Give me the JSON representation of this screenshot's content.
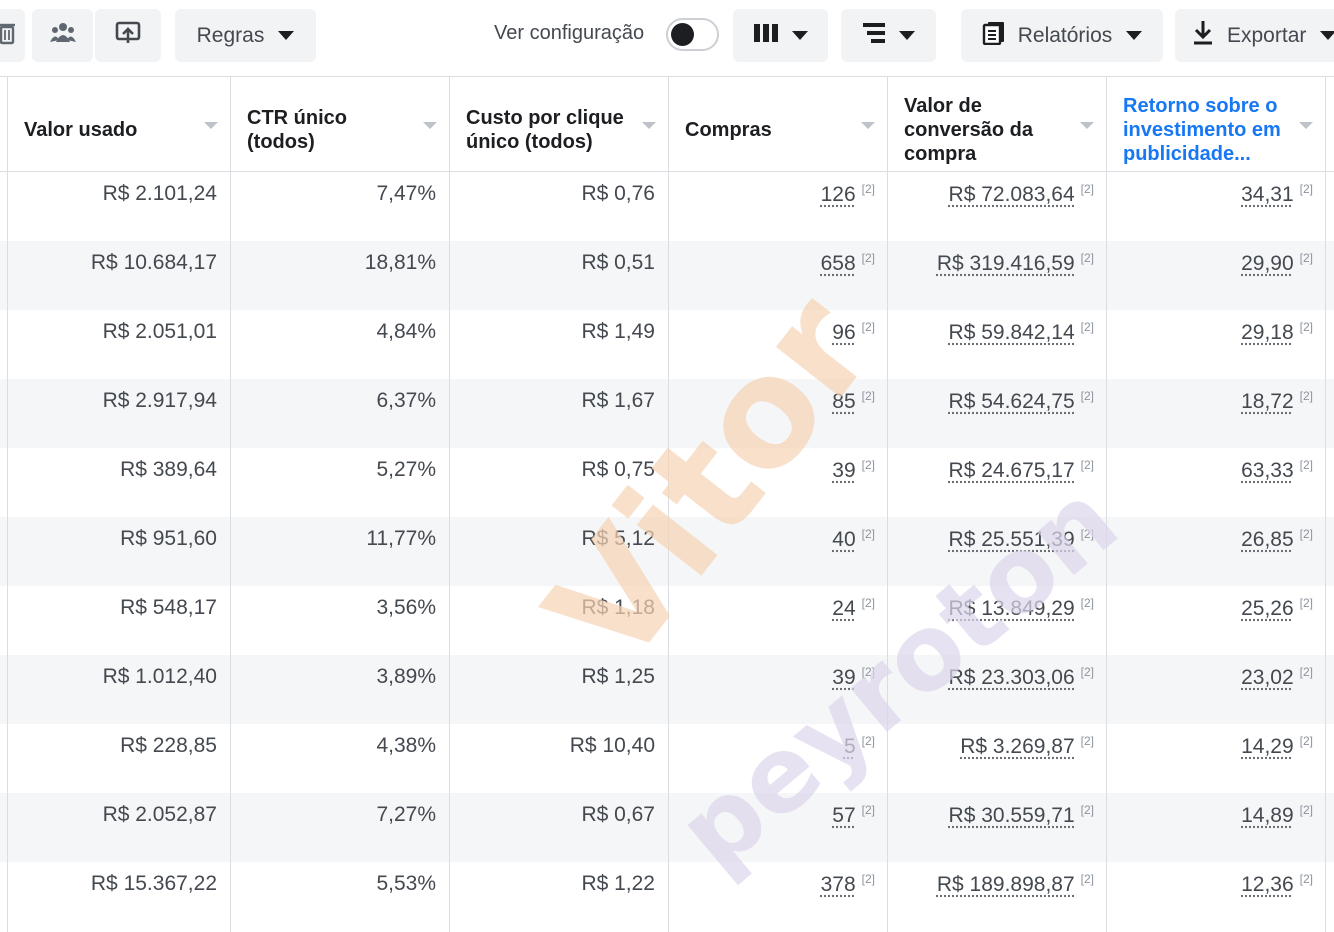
{
  "toolbar": {
    "delete_icon": "trash-icon",
    "audience_icon": "people-icon",
    "share_icon": "share-icon",
    "rules_label": "Regras",
    "view_settings_label": "Ver configuração",
    "view_settings_toggle": "off",
    "columns_icon": "columns-icon",
    "breakdown_icon": "breakdown-icon",
    "reports_label": "Relatórios",
    "export_label": "Exportar",
    "accent": "#1877f2"
  },
  "table": {
    "columns": [
      "Valor usado",
      "CTR único (todos)",
      "Custo por clique único (todos)",
      "Compras",
      "Valor de conversão da compra",
      "Retorno sobre o investimento em publicidade..."
    ],
    "active_column": 5,
    "footnote": "[2]",
    "rows": [
      [
        "R$ 2.101,24",
        "7,47%",
        "R$ 0,76",
        "126",
        "R$ 72.083,64",
        "34,31"
      ],
      [
        "R$ 10.684,17",
        "18,81%",
        "R$ 0,51",
        "658",
        "R$ 319.416,59",
        "29,90"
      ],
      [
        "R$ 2.051,01",
        "4,84%",
        "R$ 1,49",
        "96",
        "R$ 59.842,14",
        "29,18"
      ],
      [
        "R$ 2.917,94",
        "6,37%",
        "R$ 1,67",
        "85",
        "R$ 54.624,75",
        "18,72"
      ],
      [
        "R$ 389,64",
        "5,27%",
        "R$ 0,75",
        "39",
        "R$ 24.675,17",
        "63,33"
      ],
      [
        "R$ 951,60",
        "11,77%",
        "R$ 5,12",
        "40",
        "R$ 25.551,39",
        "26,85"
      ],
      [
        "R$ 548,17",
        "3,56%",
        "R$ 1,18",
        "24",
        "R$ 13.849,29",
        "25,26"
      ],
      [
        "R$ 1.012,40",
        "3,89%",
        "R$ 1,25",
        "39",
        "R$ 23.303,06",
        "23,02"
      ],
      [
        "R$ 228,85",
        "4,38%",
        "R$ 10,40",
        "5",
        "R$ 3.269,87",
        "14,29"
      ],
      [
        "R$ 2.052,87",
        "7,27%",
        "R$ 0,67",
        "57",
        "R$ 30.559,71",
        "14,89"
      ],
      [
        "R$ 15.367,22",
        "5,53%",
        "R$ 1,22",
        "378",
        "R$ 189.898,87",
        "12,36"
      ]
    ]
  },
  "watermark": {
    "line1": "Vitor",
    "line2": "peyroton",
    "color1": "#f6d3b4",
    "color2": "#ddd6ec"
  }
}
